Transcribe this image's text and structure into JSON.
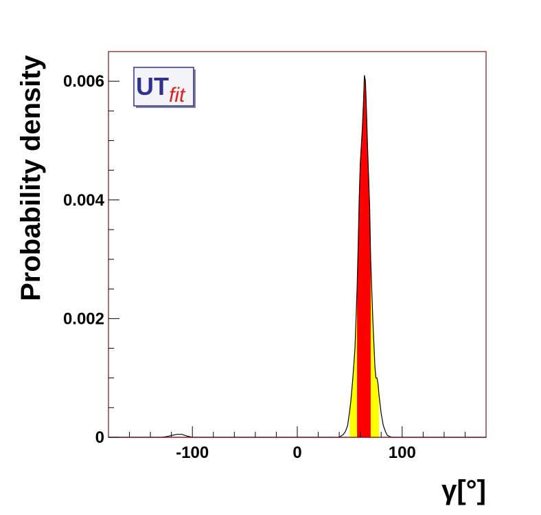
{
  "chart_data": {
    "type": "area",
    "title": "",
    "xlabel": "γ[°]",
    "ylabel": "Probability density",
    "xlim": [
      -180,
      180
    ],
    "ylim": [
      0,
      0.0065
    ],
    "x_ticks": [
      -100,
      0,
      100
    ],
    "x_tick_labels": [
      "-100",
      "0",
      "100"
    ],
    "y_ticks": [
      0,
      0.002,
      0.004,
      0.006
    ],
    "y_tick_labels": [
      "0",
      "0.002",
      "0.004",
      "0.006"
    ],
    "grid": false,
    "logo": "UTfit",
    "series": [
      {
        "x": [
          -180,
          -130,
          -125,
          -120,
          -115,
          -110,
          -105,
          -100,
          -90,
          30,
          40,
          44,
          46,
          48,
          50,
          51,
          52,
          53,
          55,
          57,
          58,
          59,
          60,
          61,
          62,
          63,
          64,
          65,
          66,
          67,
          68,
          69,
          70,
          72,
          74,
          75,
          76,
          77,
          78,
          80,
          82,
          84,
          86,
          90,
          100,
          180
        ],
        "y": [
          0,
          0,
          1e-05,
          3e-05,
          5e-05,
          5e-05,
          2e-05,
          0,
          0,
          0,
          0,
          5e-05,
          0.0001,
          0.0002,
          0.00045,
          0.0006,
          0.0008,
          0.001,
          0.0015,
          0.0025,
          0.0032,
          0.004,
          0.0046,
          0.0049,
          0.0052,
          0.0056,
          0.0061,
          0.006,
          0.0055,
          0.0049,
          0.0044,
          0.0039,
          0.003,
          0.002,
          0.0012,
          0.001,
          0.001,
          0.0009,
          0.0007,
          0.0004,
          0.0002,
          0.0001,
          3e-05,
          0,
          0,
          0
        ]
      }
    ],
    "intervals": [
      {
        "range": [
          50,
          78
        ],
        "color": "#ffff00"
      },
      {
        "range": [
          57,
          70
        ],
        "color": "#ff0000"
      }
    ],
    "colors": {
      "frame": "#7a1010",
      "curve": "#000000",
      "interval_95": "#ffff00",
      "interval_68": "#ff0000",
      "logo_blue": "#2e3192",
      "logo_red": "#e0201c"
    }
  }
}
